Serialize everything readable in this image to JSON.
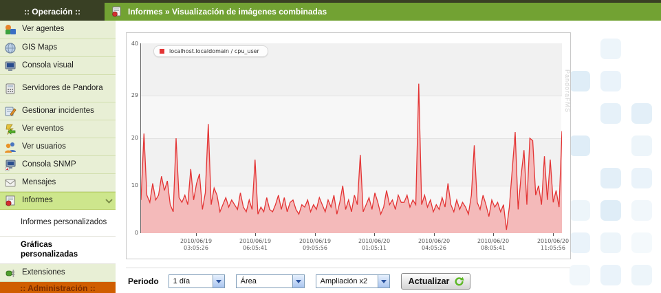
{
  "header": {
    "title": "Informes » Visualización de imágenes combinadas"
  },
  "sidebar": {
    "operation_header": ":: Operación ::",
    "admin_header": ":: Administración ::",
    "items": [
      {
        "label": "Ver agentes",
        "icon": "agents-icon"
      },
      {
        "label": "GIS Maps",
        "icon": "globe-icon"
      },
      {
        "label": "Consola visual",
        "icon": "monitor-icon"
      },
      {
        "label": "Servidores de Pandora",
        "icon": "server-icon"
      },
      {
        "label": "Gestionar incidentes",
        "icon": "incident-icon"
      },
      {
        "label": "Ver eventos",
        "icon": "events-icon"
      },
      {
        "label": "Ver usuarios",
        "icon": "users-icon"
      },
      {
        "label": "Consola SNMP",
        "icon": "snmp-icon"
      },
      {
        "label": "Mensajes",
        "icon": "envelope-icon"
      },
      {
        "label": "Informes",
        "icon": "report-icon",
        "state": "expanded"
      },
      {
        "label": "Informes personalizados"
      },
      {
        "label": "Gráficas personalizadas",
        "state": "active"
      },
      {
        "label": "Extensiones",
        "icon": "plug-icon"
      }
    ]
  },
  "chart_data": {
    "type": "area",
    "series_name": "localhost.localdomain / cpu_user",
    "line_color": "#e33434",
    "fill_color": "#f4baba",
    "ylim": [
      0,
      40
    ],
    "y_ticks": [
      "40",
      "29",
      "20",
      "10",
      "0"
    ],
    "grid": true,
    "legend_position": "top-left",
    "watermark": "PandoraFMS",
    "x_labels": [
      {
        "date": "2010/06/19",
        "time": "03:05:26"
      },
      {
        "date": "2010/06/19",
        "time": "06:05:41"
      },
      {
        "date": "2010/06/19",
        "time": "09:05:56"
      },
      {
        "date": "2010/06/20",
        "time": "01:05:11"
      },
      {
        "date": "2010/06/20",
        "time": "04:05:26"
      },
      {
        "date": "2010/06/20",
        "time": "08:05:41"
      },
      {
        "date": "2010/06/20",
        "time": "11:05:56"
      }
    ],
    "values": [
      7,
      21,
      8,
      6.5,
      10.5,
      7,
      8,
      12,
      9,
      11,
      6,
      4.5,
      20,
      7.5,
      6.5,
      8,
      6,
      13.5,
      7,
      10.5,
      12.5,
      5,
      8.5,
      23,
      6,
      9.5,
      8,
      4.5,
      6,
      7.5,
      5.5,
      7,
      6,
      5,
      8.5,
      5.5,
      4.5,
      7,
      5,
      15.5,
      4,
      5.5,
      4.5,
      7.5,
      5,
      4.5,
      6,
      8,
      5,
      7.5,
      4.5,
      6.5,
      7,
      5,
      4,
      6,
      5.5,
      7,
      4.5,
      6,
      5,
      7.5,
      6,
      4.5,
      7,
      5.5,
      8,
      4,
      6.5,
      10,
      5,
      7,
      4.5,
      8,
      6,
      16.5,
      4.5,
      6,
      7.5,
      5,
      8.5,
      6.5,
      4,
      5.5,
      9,
      6,
      7,
      5,
      8,
      6.5,
      6.5,
      8,
      5.5,
      7,
      6,
      31.5,
      6,
      8,
      5.5,
      7,
      4.5,
      6,
      5,
      7.5,
      5.5,
      10.5,
      6,
      4.5,
      7,
      5,
      6.5,
      5.5,
      4,
      8,
      18.5,
      6.5,
      5,
      8,
      6,
      3.5,
      7,
      5.5,
      6.5,
      4.5,
      6,
      0.7,
      5.5,
      13.5,
      21.3,
      5,
      12,
      17.5,
      6,
      20,
      19.5,
      8,
      10,
      6,
      16.2,
      7,
      15.5,
      6.5,
      9,
      5.5,
      21.5
    ]
  },
  "controls": {
    "period_label": "Periodo",
    "period_value": "1 día",
    "type_value": "Área",
    "zoom_value": "Ampliación x2",
    "refresh_label": "Actualizar"
  }
}
